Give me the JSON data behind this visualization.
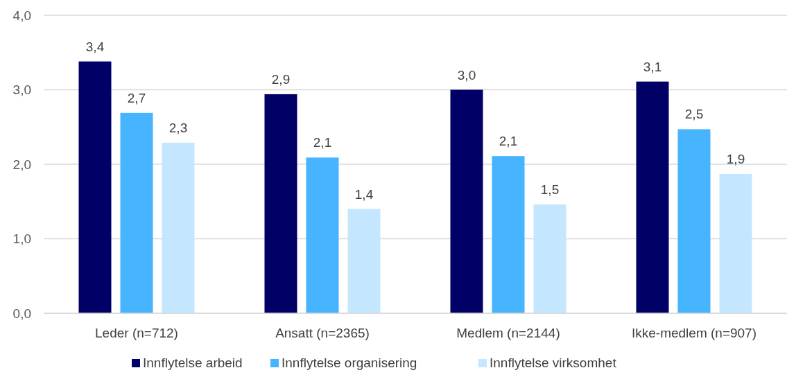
{
  "chart_data": {
    "type": "bar",
    "categories": [
      "Leder (n=712)",
      "Ansatt (n=2365)",
      "Medlem (n=2144)",
      "Ikke-medlem (n=907)"
    ],
    "series": [
      {
        "name": "Innflytelse arbeid",
        "color": "#000066",
        "values": [
          3.38,
          2.94,
          3.0,
          3.11
        ],
        "value_labels": [
          "3,4",
          "2,9",
          "3,0",
          "3,1"
        ]
      },
      {
        "name": "Innflytelse organisering",
        "color": "#47b4ff",
        "values": [
          2.69,
          2.09,
          2.11,
          2.47
        ],
        "value_labels": [
          "2,7",
          "2,1",
          "2,1",
          "2,5"
        ]
      },
      {
        "name": "Innflytelse virksomhet",
        "color": "#c5e6ff",
        "values": [
          2.29,
          1.4,
          1.46,
          1.87
        ],
        "value_labels": [
          "2,3",
          "1,4",
          "1,5",
          "1,9"
        ]
      }
    ],
    "ylim": [
      0,
      4
    ],
    "yticks": [
      {
        "value": 0,
        "label": "0,0"
      },
      {
        "value": 1,
        "label": "1,0"
      },
      {
        "value": 2,
        "label": "2,0"
      },
      {
        "value": 3,
        "label": "3,0"
      },
      {
        "value": 4,
        "label": "4,0"
      }
    ],
    "grid": "y",
    "legend": "bottom"
  }
}
